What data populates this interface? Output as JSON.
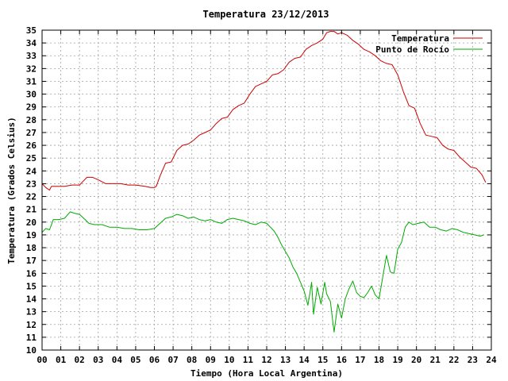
{
  "chart_data": {
    "type": "line",
    "title": "Temperatura 23/12/2013",
    "xlabel": "Tiempo (Hora Local Argentina)",
    "ylabel": "Temperatura (Grados Celsius)",
    "xlim": [
      0,
      24
    ],
    "ylim": [
      10,
      35
    ],
    "grid": true,
    "legend_position": "top-right",
    "x_tick_labels": [
      "00",
      "01",
      "02",
      "03",
      "04",
      "05",
      "06",
      "07",
      "08",
      "09",
      "10",
      "11",
      "12",
      "13",
      "14",
      "15",
      "16",
      "17",
      "18",
      "19",
      "20",
      "21",
      "22",
      "23",
      "24"
    ],
    "y_tick_labels": [
      "10",
      "11",
      "12",
      "13",
      "14",
      "15",
      "16",
      "17",
      "18",
      "19",
      "20",
      "21",
      "22",
      "23",
      "24",
      "25",
      "26",
      "27",
      "28",
      "29",
      "30",
      "31",
      "32",
      "33",
      "34",
      "35"
    ],
    "series": [
      {
        "name": "Temperatura",
        "color": "#cc0000",
        "x": [
          0,
          0.2,
          0.4,
          0.5,
          0.8,
          1.2,
          1.6,
          2.0,
          2.2,
          2.4,
          2.7,
          3.0,
          3.4,
          3.8,
          4.2,
          4.6,
          5.0,
          5.5,
          5.8,
          6.0,
          6.1,
          6.3,
          6.6,
          6.9,
          7.2,
          7.5,
          7.8,
          8.1,
          8.4,
          8.7,
          9.0,
          9.3,
          9.6,
          9.9,
          10.2,
          10.5,
          10.8,
          11.1,
          11.4,
          11.7,
          12.0,
          12.3,
          12.6,
          12.9,
          13.2,
          13.5,
          13.8,
          14.1,
          14.4,
          14.7,
          15.0,
          15.2,
          15.4,
          15.6,
          15.8,
          16.0,
          16.3,
          16.6,
          16.9,
          17.2,
          17.5,
          17.8,
          18.1,
          18.4,
          18.7,
          19.0,
          19.3,
          19.6,
          19.9,
          20.2,
          20.5,
          20.8,
          21.1,
          21.4,
          21.7,
          22.0,
          22.3,
          22.6,
          22.9,
          23.2,
          23.5,
          23.7
        ],
        "values": [
          23.0,
          22.7,
          22.5,
          22.8,
          22.8,
          22.8,
          22.9,
          22.9,
          23.2,
          23.5,
          23.5,
          23.3,
          23.0,
          23.0,
          23.0,
          22.9,
          22.9,
          22.8,
          22.7,
          22.7,
          22.8,
          23.6,
          24.6,
          24.7,
          25.6,
          26.0,
          26.1,
          26.4,
          26.8,
          27.0,
          27.2,
          27.7,
          28.1,
          28.2,
          28.8,
          29.1,
          29.3,
          30.0,
          30.6,
          30.8,
          31.0,
          31.5,
          31.6,
          31.9,
          32.5,
          32.8,
          32.9,
          33.5,
          33.8,
          34.0,
          34.3,
          34.8,
          34.9,
          34.9,
          34.7,
          34.8,
          34.6,
          34.2,
          33.9,
          33.5,
          33.3,
          33.0,
          32.6,
          32.4,
          32.3,
          31.5,
          30.2,
          29.1,
          28.9,
          27.7,
          26.8,
          26.7,
          26.6,
          26.0,
          25.7,
          25.6,
          25.1,
          24.7,
          24.3,
          24.2,
          23.7,
          23.1
        ]
      },
      {
        "name": "Punto de Rocío",
        "color": "#00aa00",
        "x": [
          0,
          0.2,
          0.4,
          0.6,
          0.9,
          1.2,
          1.5,
          1.7,
          2.0,
          2.3,
          2.5,
          2.8,
          3.2,
          3.6,
          4.0,
          4.4,
          4.8,
          5.2,
          5.6,
          6.0,
          6.3,
          6.6,
          6.9,
          7.2,
          7.5,
          7.8,
          8.1,
          8.4,
          8.7,
          9.0,
          9.3,
          9.6,
          9.9,
          10.2,
          10.5,
          10.8,
          11.1,
          11.4,
          11.7,
          12.0,
          12.2,
          12.4,
          12.6,
          12.8,
          13.0,
          13.2,
          13.4,
          13.6,
          13.8,
          14.0,
          14.2,
          14.4,
          14.5,
          14.7,
          14.9,
          15.1,
          15.2,
          15.4,
          15.6,
          15.8,
          16.0,
          16.2,
          16.4,
          16.6,
          16.8,
          17.0,
          17.2,
          17.4,
          17.6,
          17.8,
          18.0,
          18.2,
          18.4,
          18.6,
          18.8,
          19.0,
          19.2,
          19.4,
          19.6,
          19.8,
          20.1,
          20.4,
          20.7,
          21.0,
          21.3,
          21.6,
          21.9,
          22.2,
          22.5,
          22.8,
          23.1,
          23.4,
          23.6
        ],
        "values": [
          19.2,
          19.5,
          19.4,
          20.2,
          20.2,
          20.3,
          20.8,
          20.7,
          20.6,
          20.2,
          19.9,
          19.8,
          19.8,
          19.6,
          19.6,
          19.5,
          19.5,
          19.4,
          19.4,
          19.5,
          19.9,
          20.3,
          20.4,
          20.6,
          20.5,
          20.3,
          20.4,
          20.2,
          20.1,
          20.2,
          20.0,
          19.9,
          20.2,
          20.3,
          20.2,
          20.1,
          19.9,
          19.8,
          20.0,
          19.9,
          19.6,
          19.3,
          18.8,
          18.2,
          17.7,
          17.2,
          16.5,
          16.0,
          15.3,
          14.6,
          13.5,
          15.3,
          12.8,
          14.9,
          13.6,
          15.3,
          14.4,
          13.8,
          11.4,
          13.6,
          12.5,
          14.0,
          14.8,
          15.4,
          14.5,
          14.2,
          14.1,
          14.5,
          15.0,
          14.3,
          14.0,
          15.7,
          17.4,
          16.1,
          16.0,
          17.9,
          18.4,
          19.6,
          20.0,
          19.8,
          19.9,
          20.0,
          19.6,
          19.6,
          19.4,
          19.3,
          19.5,
          19.4,
          19.2,
          19.1,
          19.0,
          18.9,
          19.0
        ]
      }
    ]
  }
}
